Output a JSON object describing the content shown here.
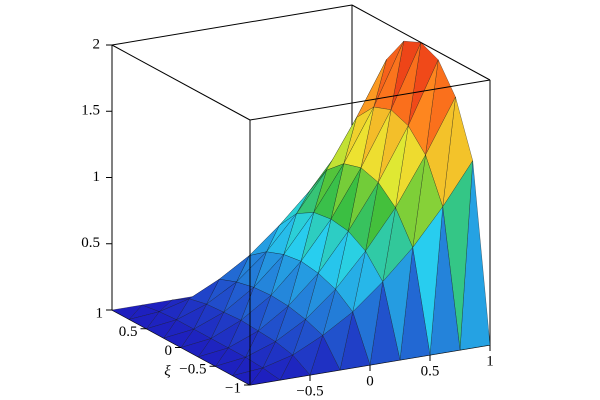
{
  "chart_data": {
    "type": "surface",
    "y_label": "ξ",
    "x": [
      -1,
      -0.75,
      -0.5,
      -0.25,
      0,
      0.25,
      0.5,
      0.75,
      1
    ],
    "y": [
      -1,
      -0.75,
      -0.5,
      -0.25,
      0,
      0.25,
      0.5,
      0.75,
      1
    ],
    "z": [
      [
        0,
        0,
        0,
        0,
        0,
        0,
        0,
        0,
        0
      ],
      [
        0,
        0.02,
        0.08,
        0.19,
        0.33,
        0.52,
        0.74,
        1.01,
        1.32
      ],
      [
        0,
        0.03,
        0.11,
        0.24,
        0.43,
        0.68,
        0.97,
        1.33,
        1.73
      ],
      [
        0,
        0.03,
        0.12,
        0.27,
        0.48,
        0.76,
        1.09,
        1.48,
        1.94
      ],
      [
        0,
        0.03,
        0.13,
        0.28,
        0.5,
        0.78,
        1.13,
        1.53,
        2
      ],
      [
        0,
        0.03,
        0.12,
        0.27,
        0.48,
        0.76,
        1.09,
        1.48,
        1.94
      ],
      [
        0,
        0.03,
        0.11,
        0.24,
        0.43,
        0.68,
        0.97,
        1.33,
        1.73
      ],
      [
        0,
        0.02,
        0.08,
        0.19,
        0.33,
        0.52,
        0.74,
        1.01,
        1.32
      ],
      [
        0,
        0,
        0,
        0,
        0,
        0,
        0,
        0,
        0
      ]
    ],
    "xlim": [
      -1,
      1
    ],
    "ylim": [
      -1,
      1
    ],
    "zlim": [
      0,
      2
    ],
    "xticks": [
      {
        "value": -0.5,
        "label": "−0.5"
      },
      0,
      0.5,
      1
    ],
    "yticks": [
      {
        "value": -1,
        "label": "−1"
      },
      {
        "value": -0.5,
        "label": "−0.5"
      },
      0,
      0.5,
      1
    ],
    "zticks": [
      0.5,
      1,
      1.5,
      2
    ]
  }
}
